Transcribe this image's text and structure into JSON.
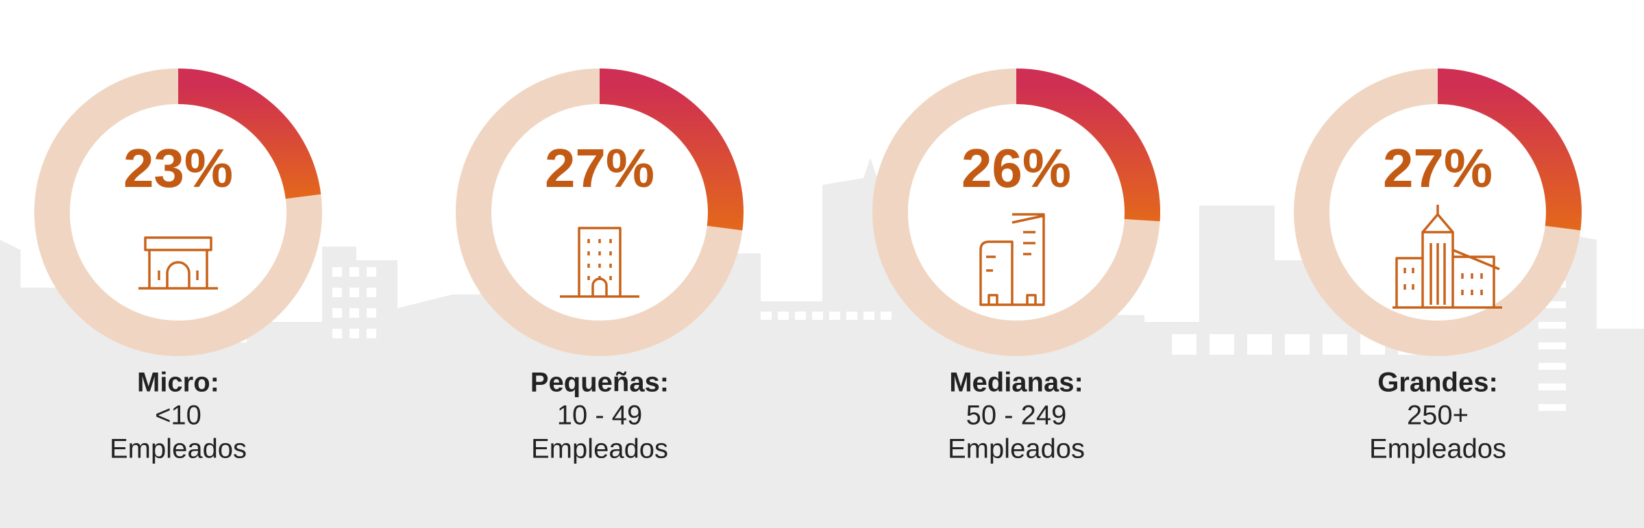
{
  "chart_data": [
    {
      "type": "pie",
      "title": "Micro:",
      "caption": [
        "<10",
        "Empleados"
      ],
      "values": [
        23
      ],
      "value_labels": [
        "23%"
      ],
      "colors": [
        "#cf2f52",
        "#e3671c"
      ],
      "track_color": "#f0d6c2"
    },
    {
      "type": "pie",
      "title": "Pequeñas:",
      "caption": [
        "10 - 49",
        "Empleados"
      ],
      "values": [
        27
      ],
      "value_labels": [
        "27%"
      ],
      "colors": [
        "#cf2f52",
        "#e3671c"
      ],
      "track_color": "#f0d6c2"
    },
    {
      "type": "pie",
      "title": "Medianas:",
      "caption": [
        "50 - 249",
        "Empleados"
      ],
      "values": [
        26
      ],
      "value_labels": [
        "26%"
      ],
      "colors": [
        "#cf2f52",
        "#e3671c"
      ],
      "track_color": "#f0d6c2"
    },
    {
      "type": "pie",
      "title": "Grandes:",
      "caption": [
        "250+",
        "Empleados"
      ],
      "values": [
        27
      ],
      "value_labels": [
        "27%"
      ],
      "colors": [
        "#cf2f52",
        "#e3671c"
      ],
      "track_color": "#f0d6c2"
    }
  ]
}
